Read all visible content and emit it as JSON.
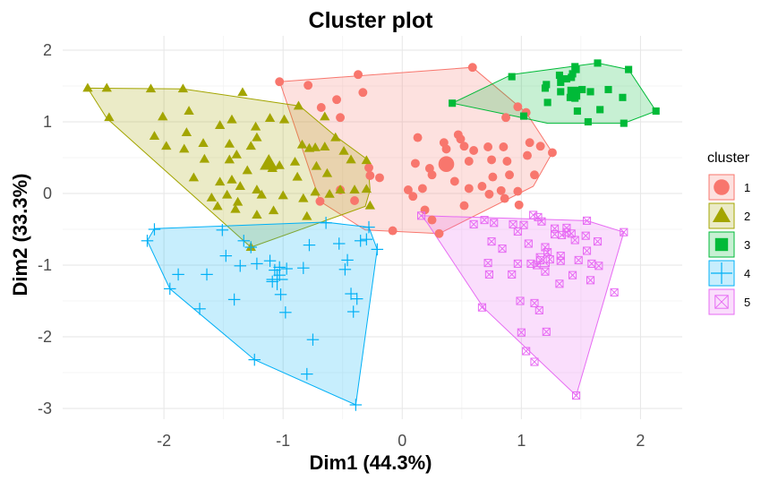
{
  "chart_data": {
    "type": "scatter",
    "title": "Cluster plot",
    "xlabel": "Dim1 (44.3%)",
    "ylabel": "Dim2 (33.3%)",
    "xlim": [
      -2.85,
      2.35
    ],
    "ylim": [
      -3.15,
      2.2
    ],
    "xticks": [
      -2,
      -1,
      0,
      1,
      2
    ],
    "yticks": [
      -3,
      -2,
      -1,
      0,
      1,
      2
    ],
    "grid": true,
    "legend": {
      "title": "cluster",
      "position": "right"
    },
    "series": [
      {
        "name": "1",
        "color": "#F8766D",
        "shape": "circle",
        "centroid": [
          0.37,
          0.41
        ],
        "hull": [
          [
            -1.03,
            1.56
          ],
          [
            0.59,
            1.76
          ],
          [
            1.04,
            1.13
          ],
          [
            1.26,
            0.57
          ],
          [
            1.1,
            0.1
          ],
          [
            0.31,
            -0.56
          ],
          [
            -0.31,
            -0.51
          ],
          [
            -0.69,
            -0.11
          ],
          [
            -1.01,
            1.47
          ]
        ],
        "points": [
          [
            -1.03,
            1.56
          ],
          [
            -0.37,
            1.66
          ],
          [
            -0.79,
            1.51
          ],
          [
            -0.33,
            1.41
          ],
          [
            -0.55,
            1.31
          ],
          [
            -0.68,
            1.2
          ],
          [
            -0.52,
            1.06
          ],
          [
            0.59,
            1.76
          ],
          [
            0.97,
            1.21
          ],
          [
            0.87,
            1.06
          ],
          [
            1.04,
            1.13
          ],
          [
            0.13,
            0.78
          ],
          [
            0.35,
            0.71
          ],
          [
            0.47,
            0.82
          ],
          [
            0.49,
            0.76
          ],
          [
            0.52,
            0.66
          ],
          [
            0.37,
            0.62
          ],
          [
            0.6,
            0.6
          ],
          [
            0.72,
            0.65
          ],
          [
            0.85,
            0.65
          ],
          [
            1.07,
            0.71
          ],
          [
            1.16,
            0.66
          ],
          [
            1.26,
            0.57
          ],
          [
            1.05,
            0.53
          ],
          [
            0.75,
            0.47
          ],
          [
            0.88,
            0.45
          ],
          [
            0.56,
            0.45
          ],
          [
            0.11,
            0.42
          ],
          [
            0.23,
            0.35
          ],
          [
            0.76,
            0.23
          ],
          [
            0.9,
            0.26
          ],
          [
            1.11,
            0.26
          ],
          [
            0.97,
            0.03
          ],
          [
            0.83,
            0.04
          ],
          [
            0.73,
            -0.01
          ],
          [
            0.67,
            0.1
          ],
          [
            0.56,
            0.07
          ],
          [
            0.86,
            -0.07
          ],
          [
            0.98,
            -0.16
          ],
          [
            -0.52,
            0.05
          ],
          [
            -0.28,
            0.36
          ],
          [
            -0.27,
            0.25
          ],
          [
            0.09,
            -0.04
          ],
          [
            0.17,
            0.07
          ],
          [
            0.25,
            0.26
          ],
          [
            -0.08,
            -0.52
          ],
          [
            0.31,
            -0.56
          ],
          [
            0.25,
            -0.37
          ],
          [
            0.19,
            -0.23
          ],
          [
            -0.4,
            -0.1
          ],
          [
            -0.69,
            -0.11
          ],
          [
            -0.19,
            0.22
          ],
          [
            0.05,
            0.05
          ],
          [
            0.52,
            -0.17
          ],
          [
            0.44,
            0.17
          ]
        ]
      },
      {
        "name": "2",
        "color": "#A3A500",
        "shape": "triangle",
        "centroid": [
          -1.12,
          0.42
        ],
        "hull": [
          [
            -2.64,
            1.47
          ],
          [
            -1.84,
            1.46
          ],
          [
            -0.86,
            1.22
          ],
          [
            -0.56,
            0.8
          ],
          [
            -0.29,
            0.47
          ],
          [
            -0.27,
            0.05
          ],
          [
            -0.31,
            -0.18
          ],
          [
            -1.27,
            -0.75
          ],
          [
            -2.48,
            1.05
          ]
        ],
        "points": [
          [
            -2.64,
            1.47
          ],
          [
            -2.48,
            1.47
          ],
          [
            -2.11,
            1.46
          ],
          [
            -1.84,
            1.46
          ],
          [
            -1.34,
            1.41
          ],
          [
            -2.46,
            1.06
          ],
          [
            -1.79,
            1.15
          ],
          [
            -2.01,
            1.07
          ],
          [
            -0.87,
            1.22
          ],
          [
            -0.99,
            1.03
          ],
          [
            -1.11,
            1.05
          ],
          [
            -0.65,
            1.07
          ],
          [
            -0.56,
            0.78
          ],
          [
            -1.81,
            0.85
          ],
          [
            -1.53,
            0.95
          ],
          [
            -1.43,
            1.03
          ],
          [
            -1.23,
            0.93
          ],
          [
            -1.22,
            0.78
          ],
          [
            -2.08,
            0.8
          ],
          [
            -1.98,
            0.66
          ],
          [
            -1.83,
            0.62
          ],
          [
            -1.67,
            0.7
          ],
          [
            -1.45,
            0.69
          ],
          [
            -1.39,
            0.54
          ],
          [
            -1.27,
            0.66
          ],
          [
            -0.84,
            0.68
          ],
          [
            -0.78,
            0.63
          ],
          [
            -0.73,
            0.64
          ],
          [
            -0.65,
            0.65
          ],
          [
            -0.49,
            0.59
          ],
          [
            -0.43,
            0.47
          ],
          [
            -0.3,
            0.46
          ],
          [
            -1.66,
            0.48
          ],
          [
            -1.45,
            0.47
          ],
          [
            -1.3,
            0.32
          ],
          [
            -1.12,
            0.44
          ],
          [
            -1.09,
            0.35
          ],
          [
            -1.03,
            0.39
          ],
          [
            -0.9,
            0.44
          ],
          [
            -0.72,
            0.38
          ],
          [
            -0.63,
            0.28
          ],
          [
            -0.88,
            0.23
          ],
          [
            -1.75,
            0.22
          ],
          [
            -1.53,
            0.16
          ],
          [
            -1.43,
            0.19
          ],
          [
            -1.36,
            0.1
          ],
          [
            -1.22,
            0.05
          ],
          [
            -1.47,
            -0.02
          ],
          [
            -1.6,
            -0.06
          ],
          [
            -1.38,
            -0.12
          ],
          [
            -1.18,
            -0.02
          ],
          [
            -1.0,
            -0.03
          ],
          [
            -0.83,
            -0.07
          ],
          [
            -0.73,
            0.02
          ],
          [
            -0.61,
            -0.01
          ],
          [
            -0.52,
            0.05
          ],
          [
            -0.4,
            0.05
          ],
          [
            -0.3,
            0.06
          ],
          [
            -0.27,
            -0.17
          ],
          [
            -1.55,
            -0.18
          ],
          [
            -1.4,
            -0.22
          ],
          [
            -1.22,
            -0.3
          ],
          [
            -1.08,
            -0.24
          ],
          [
            -0.8,
            -0.32
          ],
          [
            -1.27,
            -0.75
          ]
        ]
      },
      {
        "name": "3",
        "color": "#00BA38",
        "shape": "square",
        "centroid": [
          1.44,
          1.4
        ],
        "hull": [
          [
            0.42,
            1.26
          ],
          [
            0.92,
            1.66
          ],
          [
            1.64,
            1.82
          ],
          [
            1.9,
            1.73
          ],
          [
            2.13,
            1.15
          ],
          [
            1.86,
            0.98
          ],
          [
            1.22,
            0.98
          ],
          [
            0.97,
            1.07
          ]
        ],
        "points": [
          [
            0.42,
            1.26
          ],
          [
            0.92,
            1.63
          ],
          [
            1.45,
            1.77
          ],
          [
            1.46,
            1.73
          ],
          [
            1.43,
            1.67
          ],
          [
            1.64,
            1.82
          ],
          [
            1.9,
            1.73
          ],
          [
            1.38,
            1.6
          ],
          [
            1.33,
            1.55
          ],
          [
            1.21,
            1.52
          ],
          [
            1.2,
            1.47
          ],
          [
            1.33,
            1.42
          ],
          [
            1.44,
            1.4
          ],
          [
            1.51,
            1.45
          ],
          [
            1.58,
            1.42
          ],
          [
            1.73,
            1.45
          ],
          [
            1.85,
            1.34
          ],
          [
            1.45,
            1.33
          ],
          [
            1.41,
            1.34
          ],
          [
            1.22,
            1.27
          ],
          [
            1.47,
            1.15
          ],
          [
            1.66,
            1.17
          ],
          [
            2.13,
            1.15
          ],
          [
            1.56,
            1.0
          ],
          [
            1.86,
            0.98
          ],
          [
            1.02,
            1.08
          ],
          [
            1.42,
            1.62
          ],
          [
            1.32,
            1.65
          ]
        ]
      },
      {
        "name": "4",
        "color": "#00B0F6",
        "shape": "plus",
        "centroid": [
          -1.05,
          -1.2
        ],
        "hull": [
          [
            -2.08,
            -0.49
          ],
          [
            -0.65,
            -0.4
          ],
          [
            -0.28,
            -0.47
          ],
          [
            -0.21,
            -0.78
          ],
          [
            -0.39,
            -2.95
          ],
          [
            -1.24,
            -2.32
          ],
          [
            -1.95,
            -1.33
          ],
          [
            -2.14,
            -0.66
          ]
        ],
        "points": [
          [
            -2.08,
            -0.5
          ],
          [
            -2.14,
            -0.66
          ],
          [
            -1.51,
            -0.51
          ],
          [
            -1.33,
            -0.66
          ],
          [
            -1.27,
            -0.75
          ],
          [
            -0.64,
            -0.41
          ],
          [
            -0.28,
            -0.47
          ],
          [
            -0.35,
            -0.66
          ],
          [
            -0.3,
            -0.64
          ],
          [
            -0.21,
            -0.78
          ],
          [
            -0.53,
            -0.7
          ],
          [
            -0.78,
            -0.72
          ],
          [
            -0.83,
            -1.04
          ],
          [
            -0.46,
            -0.93
          ],
          [
            -0.48,
            -1.06
          ],
          [
            -1.03,
            -1.03
          ],
          [
            -1.03,
            -1.14
          ],
          [
            -0.97,
            -1.05
          ],
          [
            -1.07,
            -1.07
          ],
          [
            -1.22,
            -0.98
          ],
          [
            -1.11,
            -0.94
          ],
          [
            -1.36,
            -1.01
          ],
          [
            -1.48,
            -0.87
          ],
          [
            -1.64,
            -1.13
          ],
          [
            -1.88,
            -1.13
          ],
          [
            -1.95,
            -1.33
          ],
          [
            -1.41,
            -1.48
          ],
          [
            -1.02,
            -1.41
          ],
          [
            -1.09,
            -1.23
          ],
          [
            -0.98,
            -1.66
          ],
          [
            -0.43,
            -1.4
          ],
          [
            -0.38,
            -1.47
          ],
          [
            -0.41,
            -1.65
          ],
          [
            -1.7,
            -1.61
          ],
          [
            -0.75,
            -2.04
          ],
          [
            -0.8,
            -2.52
          ],
          [
            -1.24,
            -2.32
          ],
          [
            -0.39,
            -2.95
          ]
        ]
      },
      {
        "name": "5",
        "color": "#E76BF3",
        "shape": "square-cross",
        "centroid": [
          1.18,
          -0.93
        ],
        "hull": [
          [
            0.16,
            -0.31
          ],
          [
            1.55,
            -0.38
          ],
          [
            1.86,
            -0.54
          ],
          [
            1.46,
            -2.82
          ],
          [
            0.68,
            -1.59
          ],
          [
            0.21,
            -0.41
          ]
        ],
        "points": [
          [
            0.16,
            -0.31
          ],
          [
            0.69,
            -0.37
          ],
          [
            0.77,
            -0.41
          ],
          [
            1.1,
            -0.3
          ],
          [
            1.14,
            -0.33
          ],
          [
            1.17,
            -0.39
          ],
          [
            1.55,
            -0.38
          ],
          [
            1.86,
            -0.54
          ],
          [
            0.6,
            -0.43
          ],
          [
            0.93,
            -0.43
          ],
          [
            0.97,
            -0.53
          ],
          [
            1.02,
            -0.44
          ],
          [
            1.28,
            -0.49
          ],
          [
            1.34,
            -0.58
          ],
          [
            1.38,
            -0.54
          ],
          [
            1.42,
            -0.56
          ],
          [
            1.38,
            -0.48
          ],
          [
            1.28,
            -0.57
          ],
          [
            1.45,
            -0.65
          ],
          [
            1.54,
            -0.59
          ],
          [
            1.64,
            -0.67
          ],
          [
            0.75,
            -0.67
          ],
          [
            0.84,
            -0.77
          ],
          [
            1.06,
            -0.7
          ],
          [
            1.2,
            -0.75
          ],
          [
            1.22,
            -0.82
          ],
          [
            1.16,
            -0.93
          ],
          [
            1.24,
            -0.92
          ],
          [
            1.13,
            -1.0
          ],
          [
            1.33,
            -0.87
          ],
          [
            1.55,
            -0.8
          ],
          [
            1.48,
            -0.93
          ],
          [
            1.2,
            -1.09
          ],
          [
            1.33,
            -0.94
          ],
          [
            1.59,
            -0.98
          ],
          [
            1.65,
            -1.01
          ],
          [
            1.08,
            -0.98
          ],
          [
            0.97,
            -0.98
          ],
          [
            0.72,
            -0.97
          ],
          [
            0.73,
            -1.13
          ],
          [
            0.92,
            -1.13
          ],
          [
            1.32,
            -1.26
          ],
          [
            1.58,
            -1.21
          ],
          [
            1.78,
            -1.38
          ],
          [
            1.43,
            -1.14
          ],
          [
            0.99,
            -1.5
          ],
          [
            1.11,
            -1.53
          ],
          [
            0.67,
            -1.59
          ],
          [
            1.15,
            -1.63
          ],
          [
            1.0,
            -1.94
          ],
          [
            1.21,
            -1.93
          ],
          [
            1.11,
            -2.35
          ],
          [
            1.04,
            -2.2
          ],
          [
            1.46,
            -2.82
          ]
        ]
      }
    ]
  }
}
